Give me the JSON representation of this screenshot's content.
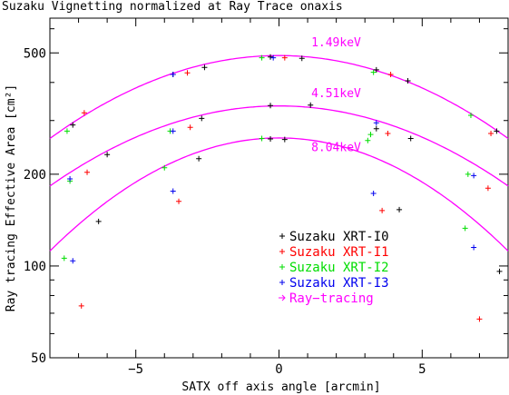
{
  "chart_data": {
    "type": "scatter",
    "title": "Suzaku Vignetting normalized at Ray Trace onaxis",
    "xlabel": "SATX off axis angle [arcmin]",
    "ylabel": "Ray tracing Effective Area [cm²]",
    "xlim": [
      -8,
      8
    ],
    "ylim": [
      50,
      650
    ],
    "y_scale": "log",
    "x_ticks": [
      -5,
      0,
      5
    ],
    "y_ticks": [
      50,
      100,
      200,
      500
    ],
    "grid": false,
    "legend_position": "bottom-right",
    "energy_labels": [
      {
        "text": "1.49keV",
        "x": 1.0,
        "y": 525
      },
      {
        "text": "4.51keV",
        "x": 1.0,
        "y": 358
      },
      {
        "text": "8.04keV",
        "x": 1.0,
        "y": 238
      }
    ],
    "curves": [
      {
        "peak": 490,
        "x": [
          -8,
          -7,
          -6,
          -5,
          -4,
          -3,
          -2,
          -1,
          0,
          1,
          2,
          3,
          4,
          5,
          6,
          7,
          8
        ],
        "values": [
          262,
          295,
          330,
          366,
          401,
          433,
          460,
          480,
          490,
          480,
          460,
          433,
          401,
          366,
          330,
          295,
          262
        ]
      },
      {
        "peak": 335,
        "x": [
          -8,
          -7,
          -6,
          -5,
          -4,
          -3,
          -2,
          -1,
          0,
          1,
          2,
          3,
          4,
          5,
          6,
          7,
          8
        ],
        "values": [
          183,
          204,
          227,
          250,
          273,
          294,
          313,
          327,
          335,
          327,
          313,
          294,
          273,
          250,
          227,
          204,
          183
        ]
      },
      {
        "peak": 263,
        "x": [
          -8,
          -7,
          -6,
          -5,
          -4,
          -3,
          -2,
          -1,
          0,
          1,
          2,
          3,
          4,
          5,
          6,
          7,
          8
        ],
        "values": [
          112,
          136,
          159,
          181,
          201,
          220,
          237,
          253,
          263,
          253,
          237,
          220,
          201,
          181,
          159,
          136,
          112
        ]
      }
    ],
    "series": [
      {
        "name": "Suzaku XRT-I0",
        "color": "#000000",
        "points": [
          [
            -7.2,
            290
          ],
          [
            -6.0,
            232
          ],
          [
            -6.3,
            140
          ],
          [
            -3.7,
            425
          ],
          [
            -2.6,
            448
          ],
          [
            -2.7,
            305
          ],
          [
            -2.8,
            225
          ],
          [
            -0.3,
            485
          ],
          [
            0.8,
            480
          ],
          [
            -0.3,
            336
          ],
          [
            1.1,
            337
          ],
          [
            -0.3,
            261
          ],
          [
            0.2,
            260
          ],
          [
            3.4,
            440
          ],
          [
            4.5,
            405
          ],
          [
            4.6,
            262
          ],
          [
            4.2,
            153
          ],
          [
            3.4,
            282
          ],
          [
            7.6,
            277
          ],
          [
            7.7,
            96
          ]
        ]
      },
      {
        "name": "Suzaku XRT-I1",
        "color": "#ff0000",
        "points": [
          [
            -6.8,
            318
          ],
          [
            -3.2,
            430
          ],
          [
            -3.1,
            285
          ],
          [
            -6.7,
            203
          ],
          [
            -3.5,
            163
          ],
          [
            -6.9,
            74
          ],
          [
            0.2,
            482
          ],
          [
            3.9,
            425
          ],
          [
            3.8,
            272
          ],
          [
            3.6,
            152
          ],
          [
            7.3,
            180
          ],
          [
            7.4,
            272
          ],
          [
            7.0,
            67
          ]
        ]
      },
      {
        "name": "Suzaku XRT-I2",
        "color": "#00dd00",
        "points": [
          [
            -7.4,
            277
          ],
          [
            -7.3,
            190
          ],
          [
            -7.5,
            106
          ],
          [
            -3.8,
            277
          ],
          [
            -4.0,
            210
          ],
          [
            -0.6,
            482
          ],
          [
            -0.6,
            262
          ],
          [
            3.3,
            432
          ],
          [
            3.1,
            258
          ],
          [
            3.2,
            270
          ],
          [
            6.7,
            312
          ],
          [
            6.6,
            200
          ],
          [
            6.5,
            133
          ]
        ]
      },
      {
        "name": "Suzaku XRT-I3",
        "color": "#0000ee",
        "points": [
          [
            -3.7,
            425
          ],
          [
            -3.7,
            277
          ],
          [
            -3.7,
            176
          ],
          [
            -7.3,
            193
          ],
          [
            -7.2,
            104
          ],
          [
            -0.2,
            482
          ],
          [
            3.4,
            295
          ],
          [
            3.3,
            173
          ],
          [
            6.8,
            198
          ],
          [
            6.8,
            115
          ]
        ]
      }
    ],
    "ray_tracing_legend": {
      "name": "Ray−tracing",
      "color": "#ff00ff"
    }
  }
}
